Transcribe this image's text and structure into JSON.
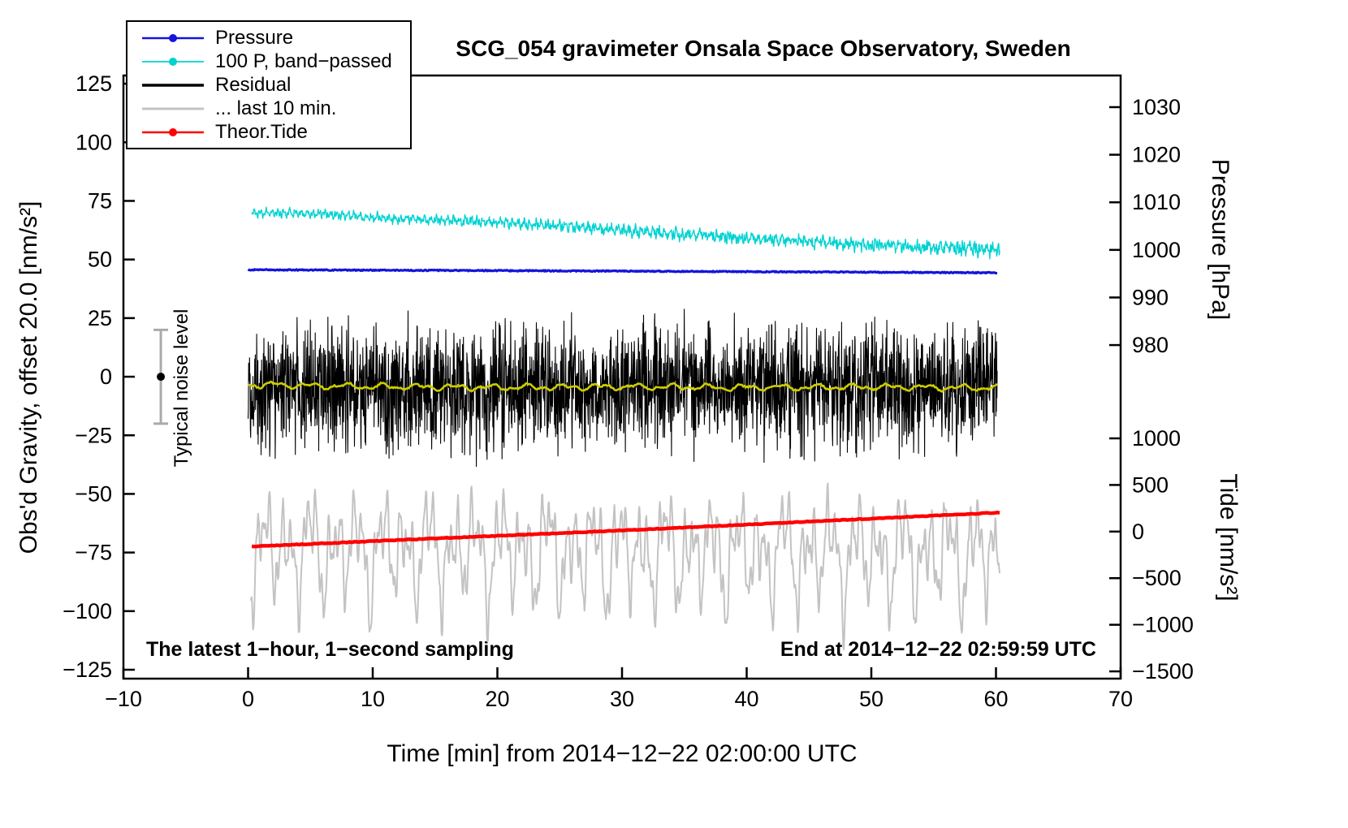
{
  "legend": {
    "items": [
      {
        "label": "Pressure",
        "color": "#1414dc",
        "dot": true,
        "width": 2.5
      },
      {
        "label": "100 P, band−passed",
        "color": "#00d2d2",
        "dot": true,
        "width": 1.8
      },
      {
        "label": "Residual",
        "color": "#000000",
        "dot": false,
        "width": 3.5
      },
      {
        "label": "... last 10 min.",
        "color": "#c3c3c3",
        "dot": false,
        "width": 3
      },
      {
        "label": "Theor.Tide",
        "color": "#ff0000",
        "dot": true,
        "width": 2.5
      }
    ]
  },
  "chart_data": {
    "type": "line",
    "title": "SCG_054 gravimeter Onsala Space Observatory, Sweden",
    "xlabel": "Time [min] from 2014−12−22 02:00:00 UTC",
    "ylabel_left": "Obs'd Gravity, offset 20.0 [nm/s²]",
    "notes": {
      "left": "The latest 1−hour, 1−second sampling",
      "right": "End at 2014−12−22 02:59:59 UTC"
    },
    "xlim": [
      -10,
      70
    ],
    "ylim_left": [
      -128.8,
      128.5
    ],
    "x_ticks": [
      -10,
      0,
      10,
      20,
      30,
      40,
      50,
      60,
      70
    ],
    "y_ticks_left": [
      -125,
      -100,
      -75,
      -50,
      -25,
      0,
      25,
      50,
      75,
      100,
      125
    ],
    "pressure_axis": {
      "label": "Pressure [hPa]",
      "ticks": [
        1030,
        1020,
        1010,
        1000,
        990,
        980
      ],
      "map": {
        "value_range": [
          980,
          1030
        ],
        "left_y_range": [
          13.5,
          115
        ]
      }
    },
    "tide_axis": {
      "label": "Tide [nm/s²]",
      "ticks": [
        1000,
        500,
        0,
        -500,
        -1000,
        -1500
      ],
      "map": {
        "value_range": [
          -1500,
          1000
        ],
        "left_y_range": [
          -125.7,
          -26.3
        ]
      }
    },
    "noise_indicator": {
      "x": -7,
      "y": 0,
      "half_range": 20,
      "label": "Typical noise level"
    },
    "series": [
      {
        "id": "residual_last10",
        "legend": "... last 10 min.",
        "color": "#c3c3c3",
        "width": 2,
        "seed": 42,
        "points": 1500,
        "x_range": [
          0.2,
          60.3
        ],
        "anchors": [
          [
            0,
            -74
          ],
          [
            30,
            -75
          ],
          [
            60,
            -76
          ]
        ],
        "waves": [
          [
            13,
            1.9
          ],
          [
            10,
            0.95
          ],
          [
            8,
            0.52
          ],
          [
            6,
            3.17
          ],
          [
            4,
            0.28
          ]
        ],
        "noise": 1.5
      },
      {
        "id": "theor_tide",
        "legend": "Theor.Tide",
        "color": "#ff0000",
        "width": 4.5,
        "seed": 2,
        "points": 300,
        "x_range": [
          0.3,
          60.3
        ],
        "anchors": [
          [
            0,
            -72.5
          ],
          [
            15,
            -69
          ],
          [
            30,
            -65.6
          ],
          [
            45,
            -61.8
          ],
          [
            60,
            -58
          ]
        ],
        "noise": 0.15
      },
      {
        "id": "band_passed",
        "legend": "100 P, band−passed",
        "color": "#00d2d2",
        "width": 1.4,
        "seed": 8,
        "points": 1500,
        "x_range": [
          0.3,
          60.3
        ],
        "anchors": [
          [
            0,
            70
          ],
          [
            3,
            69.8
          ],
          [
            6,
            69.6
          ],
          [
            9,
            68.2
          ],
          [
            12,
            67.3
          ],
          [
            15,
            66.9
          ],
          [
            18,
            66.4
          ],
          [
            21,
            65.5
          ],
          [
            24,
            64.5
          ],
          [
            27,
            63.5
          ],
          [
            30,
            62.5
          ],
          [
            33,
            61.5
          ],
          [
            36,
            60.5
          ],
          [
            39,
            59.3
          ],
          [
            42,
            58.5
          ],
          [
            45,
            57.6
          ],
          [
            48,
            56.6
          ],
          [
            51,
            56
          ],
          [
            54,
            55.2
          ],
          [
            57,
            54.6
          ],
          [
            60,
            54.2
          ]
        ],
        "waves": [
          [
            1.1,
            0.47
          ],
          [
            0.8,
            0.19
          ]
        ],
        "noise": 0.8,
        "noise_end": 2.4
      },
      {
        "id": "pressure",
        "legend": "Pressure",
        "color": "#1414dc",
        "width": 3.2,
        "seed": 4,
        "points": 800,
        "x_range": [
          0,
          60.1
        ],
        "anchors": [
          [
            0,
            45.6
          ],
          [
            15,
            45.35
          ],
          [
            30,
            45.05
          ],
          [
            45,
            44.7
          ],
          [
            60,
            44.35
          ]
        ],
        "noise": 0.22
      },
      {
        "id": "residual",
        "legend": "Residual",
        "color": "#000000",
        "width": 1.1,
        "seed": 12,
        "points": 2600,
        "x_range": [
          0,
          60.1
        ],
        "anchors": [
          [
            0,
            -4
          ],
          [
            60,
            -4.5
          ]
        ],
        "noise": 12.5,
        "gauss": true
      },
      {
        "id": "residual_smoothed",
        "legend": "",
        "color": "#cdcd00",
        "width": 2.6,
        "seed": 6,
        "points": 600,
        "x_range": [
          0,
          60.1
        ],
        "anchors": [
          [
            0,
            -3.4
          ],
          [
            10,
            -4.2
          ],
          [
            20,
            -4.6
          ],
          [
            30,
            -4.3
          ],
          [
            40,
            -4.6
          ],
          [
            50,
            -4.4
          ],
          [
            60,
            -4.8
          ]
        ],
        "waves": [
          [
            0.9,
            2.9
          ],
          [
            0.6,
            1.3
          ]
        ],
        "noise": 0.35
      }
    ]
  }
}
